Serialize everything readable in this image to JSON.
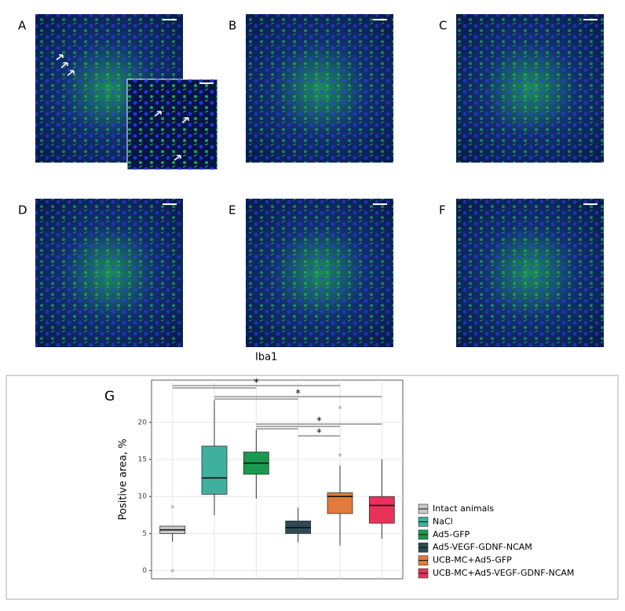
{
  "panel_labels": [
    "A",
    "B",
    "C",
    "D",
    "E",
    "F"
  ],
  "caption": "Iba1",
  "chart_label": "G",
  "chart_data": {
    "type": "box",
    "y_label": "Positive area, %",
    "categories": [
      "Intact animals",
      "NaCl",
      "Ad5-GFP",
      "Ad5-VEGF-GDNF-NCAM",
      "UCB-MC+Ad5-GFP",
      "UCB-MC+Ad5-VEGF-GDNF-NCAM"
    ],
    "colors": [
      "#c8c8c8",
      "#3fb09e",
      "#1a9a4e",
      "#2e4a55",
      "#e07b39",
      "#e8325a"
    ],
    "stats": [
      [
        3.9,
        5.0,
        5.5,
        6.0,
        6.0
      ],
      [
        7.5,
        10.3,
        12.5,
        16.8,
        23.0
      ],
      [
        9.7,
        13.0,
        14.5,
        16.0,
        19.0
      ],
      [
        3.8,
        5.0,
        5.8,
        6.7,
        8.5
      ],
      [
        3.4,
        7.7,
        10.0,
        10.5,
        14.2
      ],
      [
        4.3,
        6.4,
        8.8,
        10.0,
        15.0
      ]
    ],
    "outliers": [
      [
        0,
        8.6
      ],
      [],
      [],
      [],
      [
        15.6,
        22.0
      ],
      []
    ],
    "ylim": [
      -1.1,
      25.7
    ],
    "yticks": [
      0,
      5,
      10,
      15,
      20
    ],
    "grid": true,
    "comparisons": [
      {
        "pair": [
          0,
          4
        ],
        "label": "*"
      },
      {
        "pair": [
          0,
          2
        ]
      },
      {
        "pair": [
          1,
          5
        ],
        "label": "*"
      },
      {
        "pair": [
          1,
          3
        ]
      },
      {
        "pair": [
          2,
          5
        ],
        "label": "*"
      },
      {
        "pair": [
          2,
          4
        ]
      },
      {
        "pair": [
          2,
          3
        ]
      },
      {
        "pair": [
          3,
          4
        ],
        "label": "*"
      }
    ]
  }
}
